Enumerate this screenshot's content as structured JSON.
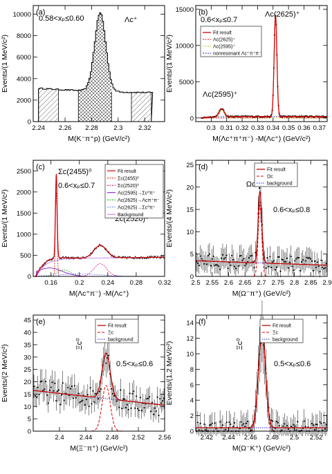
{
  "chart_data": [
    {
      "id": "a",
      "type": "histogram",
      "panel_label": "(a)",
      "xlabel": "M(K⁻π⁺p) (GeV/c²)",
      "ylabel": "Events/(1 MeV/c²)",
      "xlim": [
        2.236,
        2.335
      ],
      "ylim": [
        0,
        10800
      ],
      "xticks": [
        2.24,
        2.26,
        2.28,
        2.3,
        2.32
      ],
      "xtick_labels": [
        "2.24",
        "2.26",
        "2.28",
        "2.3",
        "2.32"
      ],
      "yticks": [
        0,
        2000,
        4000,
        6000,
        8000,
        10000
      ],
      "ytick_labels": [
        "0",
        "2000",
        "4000",
        "6000",
        "8000",
        "10000"
      ],
      "annotations": [
        "0.58<xₚ≤0.60",
        "Λᴄ⁺"
      ],
      "hatched_regions": [
        [
          2.24,
          2.255
        ],
        [
          2.27,
          2.295
        ],
        [
          2.31,
          2.325
        ]
      ],
      "peak": {
        "center": 2.2865,
        "sigma": 0.0042,
        "amplitude": 7300
      },
      "background": [
        [
          2.24,
          3100
        ],
        [
          2.26,
          2950
        ],
        [
          2.28,
          2850
        ],
        [
          2.3,
          2750
        ],
        [
          2.325,
          2700
        ]
      ]
    },
    {
      "id": "b",
      "type": "line",
      "panel_label": "(b)",
      "xlabel": "M(Λᴄ⁺π⁺π⁻) -M(Λᴄ⁺) (GeV/c²)",
      "ylabel": "Events/(1 MeV/c²)",
      "xlim": [
        0.29,
        0.375
      ],
      "ylim": [
        -500,
        15500
      ],
      "xticks": [
        0.3,
        0.31,
        0.32,
        0.33,
        0.34,
        0.35,
        0.36,
        0.37
      ],
      "xtick_labels": [
        "0.3",
        "0.31",
        "0.32",
        "0.33",
        "0.34",
        "0.35",
        "0.36",
        "0.37"
      ],
      "yticks": [
        0,
        5000,
        10000,
        15000
      ],
      "ytick_labels": [
        "0",
        "5000",
        "10000",
        "15000"
      ],
      "annotations": [
        "0.6<xₚ≤0.7",
        "Λᴄ(2625)⁺",
        "Λᴄ(2595)⁺"
      ],
      "legend": [
        "Fit result",
        "Λᴄ(2625)⁺",
        "Λᴄ(2595)⁺",
        "nonresonant Λᴄ⁺π⁺π⁻"
      ],
      "colors": {
        "fit": "#d40000",
        "res1": "#d40000",
        "res2": "#c8c800",
        "bkg": "#2222cc"
      },
      "peaks": [
        {
          "name": "2625",
          "center": 0.3416,
          "sigma": 0.0009,
          "amplitude": 14000
        },
        {
          "name": "2595",
          "center": 0.3068,
          "sigma": 0.0016,
          "amplitude": 1100
        }
      ],
      "background_level": 200
    },
    {
      "id": "c",
      "type": "line",
      "panel_label": "(c)",
      "xlabel": "M(Λᴄ⁺π⁻) -M(Λᴄ⁺)",
      "ylabel": "Events/(1 MeV/c²)",
      "xlim": [
        0.135,
        0.32
      ],
      "ylim": [
        0,
        2750
      ],
      "xticks": [
        0.16,
        0.2,
        0.24,
        0.28,
        0.32
      ],
      "xtick_labels": [
        "0.16",
        "0.2",
        "0.24",
        "0.28",
        "0.32"
      ],
      "yticks": [
        0,
        500,
        1000,
        1500,
        2000,
        2500
      ],
      "ytick_labels": [
        "0",
        "500",
        "1000",
        "1500",
        "2000",
        "2500"
      ],
      "annotations": [
        "Σᴄ(2455)⁰",
        "0.6<xₚ≤0.7",
        "Σᴄ(2520)⁰"
      ],
      "legend": [
        "Fit result",
        "Σᴄ(2455)⁰",
        "Σᴄ(2520)⁰",
        "Λᴄ(2595)→Σᴄ⁰π⁺",
        "Λᴄ(2625)→Λᴄπ⁺π⁻",
        "Λᴄ(2625)→Σᴄ⁰π⁺",
        "Background"
      ],
      "colors": {
        "fit": "#d40000",
        "res1": "#d40000",
        "res2": "#e0007f",
        "c3": "#8000c0",
        "c4": "#00b000",
        "c5": "#7070ff",
        "bkg": "#c070f0"
      },
      "peaks": [
        {
          "name": "2455",
          "center": 0.1675,
          "sigma": 0.0012,
          "amplitude": 2000
        },
        {
          "name": "2520",
          "center": 0.2295,
          "sigma": 0.009,
          "amplitude": 300
        }
      ]
    },
    {
      "id": "d",
      "type": "line",
      "panel_label": "(d)",
      "xlabel": "M(Ω⁻π⁺) (GeV/c²)",
      "ylabel": "Events/(4 MeV/c²)",
      "xlim": [
        2.5,
        2.9
      ],
      "ylim": [
        0,
        26
      ],
      "xticks": [
        2.5,
        2.55,
        2.6,
        2.65,
        2.7,
        2.75,
        2.8,
        2.85,
        2.9
      ],
      "xtick_labels": [
        "2.5",
        "2.55",
        "2.6",
        "2.65",
        "2.7",
        "2.75",
        "2.8",
        "2.85",
        "2.9"
      ],
      "yticks": [
        0,
        5,
        10,
        15,
        20,
        25
      ],
      "ytick_labels": [
        "0",
        "5",
        "10",
        "15",
        "20",
        "25"
      ],
      "annotations": [
        "Ωᴄ⁰",
        "0.6<xₚ≤0.8"
      ],
      "legend": [
        "Fit result",
        "Ωᴄ",
        "background"
      ],
      "peak": {
        "center": 2.6955,
        "sigma": 0.0055,
        "amplitude": 16
      },
      "background": {
        "y0": 3.5,
        "y1": 2.5
      }
    },
    {
      "id": "e",
      "type": "line",
      "panel_label": "(e)",
      "xlabel": "M(Ξ⁻π⁺) (GeV/c²)",
      "ylabel": "Events/(2 MeV/c²)",
      "xlim": [
        2.36,
        2.56
      ],
      "ylim": [
        0,
        47
      ],
      "xticks": [
        2.4,
        2.44,
        2.48,
        2.52,
        2.56
      ],
      "xtick_labels": [
        "2.4",
        "2.44",
        "2.48",
        "2.52",
        "2.56"
      ],
      "yticks": [
        0,
        5,
        10,
        15,
        20,
        25,
        30,
        35,
        40,
        45
      ],
      "ytick_labels": [
        "0",
        "5",
        "10",
        "15",
        "20",
        "25",
        "30",
        "35",
        "40",
        "45"
      ],
      "annotations": [
        "Ξᴄ⁰",
        "0.5<xₚ≤0.6"
      ],
      "legend": [
        "Fit result",
        "Ξᴄ",
        "background"
      ],
      "peak": {
        "center": 2.471,
        "sigma": 0.0062,
        "amplitude": 18.5
      },
      "background": {
        "y0": 16.5,
        "y1": 10.5
      }
    },
    {
      "id": "f",
      "type": "line",
      "panel_label": "(f)",
      "xlabel": "M(Ω⁻K⁺) (GeV/c²)",
      "ylabel": "Events/(1.2 MeV/c²)",
      "xlim": [
        2.41,
        2.53
      ],
      "ylim": [
        0,
        15
      ],
      "xticks": [
        2.42,
        2.44,
        2.46,
        2.48,
        2.5,
        2.52
      ],
      "xtick_labels": [
        "2.42",
        "2.44",
        "2.46",
        "2.48",
        "2.5",
        "2.52"
      ],
      "yticks": [
        0,
        2,
        4,
        6,
        8,
        10,
        12,
        14
      ],
      "ytick_labels": [
        "0",
        "2",
        "4",
        "6",
        "8",
        "10",
        "12",
        "14"
      ],
      "annotations": [
        "Ξᴄ⁰",
        "0.5<xₚ≤0.6"
      ],
      "legend": [
        "Fit result",
        "Ξᴄ",
        "background"
      ],
      "peak": {
        "center": 2.4705,
        "sigma": 0.0032,
        "amplitude": 12.5
      },
      "background": {
        "y0": 0.45,
        "y1": 0.45
      }
    }
  ]
}
